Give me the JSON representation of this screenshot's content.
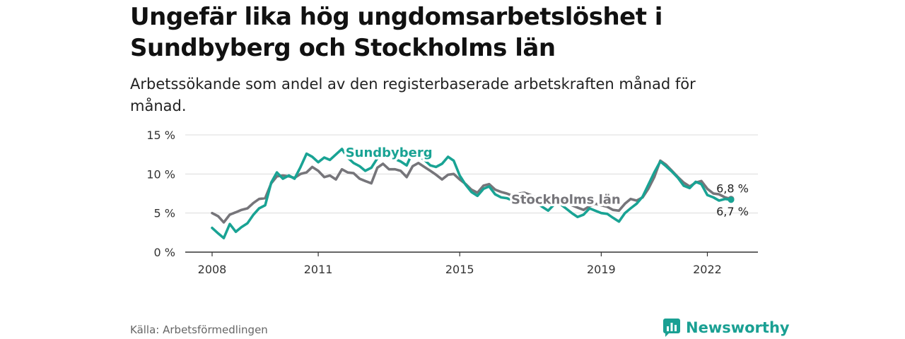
{
  "header": {
    "title": "Ungefär lika hög ungdomsarbetslöshet i Sundbyberg och Stockholms län",
    "subtitle": "Arbetssökande som andel av den registerbaserade arbetskraften månad för månad."
  },
  "footer": {
    "source": "Källa: Arbetsförmedlingen",
    "brand": "Newsworthy"
  },
  "colors": {
    "sundbyberg": "#19a394",
    "stockholm": "#76757a",
    "grid": "#dcdcdc",
    "axis": "#333333",
    "brand": "#1aa093"
  },
  "chart_data": {
    "type": "line",
    "title": "Ungefär lika hög ungdomsarbetslöshet i Sundbyberg och Stockholms län",
    "ylim": [
      0,
      15
    ],
    "yticks": [
      0,
      5,
      10,
      15
    ],
    "ytick_labels": [
      "0 %",
      "5 %",
      "10 %",
      "15 %"
    ],
    "xlim": [
      2008.0,
      2022.67
    ],
    "xticks": [
      2008,
      2011,
      2015,
      2019,
      2022
    ],
    "xtick_labels": [
      "2008",
      "2011",
      "2015",
      "2019",
      "2022"
    ],
    "series": [
      {
        "name": "Stockholms län",
        "color": "#76757a",
        "end_label": "6,8 %",
        "points": [
          [
            2008.0,
            5.0
          ],
          [
            2008.17,
            4.6
          ],
          [
            2008.33,
            3.8
          ],
          [
            2008.5,
            4.8
          ],
          [
            2008.67,
            5.1
          ],
          [
            2008.83,
            5.4
          ],
          [
            2009.0,
            5.6
          ],
          [
            2009.17,
            6.3
          ],
          [
            2009.33,
            6.8
          ],
          [
            2009.5,
            6.9
          ],
          [
            2009.67,
            8.8
          ],
          [
            2009.83,
            9.7
          ],
          [
            2010.0,
            9.8
          ],
          [
            2010.17,
            9.7
          ],
          [
            2010.33,
            9.5
          ],
          [
            2010.5,
            10.0
          ],
          [
            2010.67,
            10.2
          ],
          [
            2010.83,
            10.9
          ],
          [
            2011.0,
            10.4
          ],
          [
            2011.17,
            9.6
          ],
          [
            2011.33,
            9.8
          ],
          [
            2011.5,
            9.3
          ],
          [
            2011.67,
            10.6
          ],
          [
            2011.83,
            10.2
          ],
          [
            2012.0,
            10.1
          ],
          [
            2012.17,
            9.4
          ],
          [
            2012.33,
            9.1
          ],
          [
            2012.5,
            8.8
          ],
          [
            2012.67,
            10.8
          ],
          [
            2012.83,
            11.3
          ],
          [
            2013.0,
            10.6
          ],
          [
            2013.17,
            10.6
          ],
          [
            2013.33,
            10.4
          ],
          [
            2013.5,
            9.6
          ],
          [
            2013.67,
            11.0
          ],
          [
            2013.83,
            11.4
          ],
          [
            2014.0,
            10.9
          ],
          [
            2014.17,
            10.4
          ],
          [
            2014.33,
            9.9
          ],
          [
            2014.5,
            9.3
          ],
          [
            2014.67,
            9.9
          ],
          [
            2014.83,
            10.0
          ],
          [
            2015.0,
            9.3
          ],
          [
            2015.17,
            8.7
          ],
          [
            2015.33,
            8.0
          ],
          [
            2015.5,
            7.6
          ],
          [
            2015.67,
            8.5
          ],
          [
            2015.83,
            8.7
          ],
          [
            2016.0,
            8.0
          ],
          [
            2016.17,
            7.7
          ],
          [
            2016.33,
            7.5
          ],
          [
            2016.5,
            7.2
          ],
          [
            2016.67,
            7.5
          ],
          [
            2016.83,
            7.6
          ],
          [
            2017.0,
            7.3
          ],
          [
            2017.17,
            7.0
          ],
          [
            2017.33,
            6.7
          ],
          [
            2017.5,
            6.5
          ],
          [
            2017.67,
            6.9
          ],
          [
            2017.83,
            6.9
          ],
          [
            2018.0,
            6.3
          ],
          [
            2018.17,
            6.0
          ],
          [
            2018.33,
            5.7
          ],
          [
            2018.5,
            5.4
          ],
          [
            2018.67,
            5.9
          ],
          [
            2018.83,
            6.2
          ],
          [
            2019.0,
            6.0
          ],
          [
            2019.17,
            5.8
          ],
          [
            2019.33,
            5.4
          ],
          [
            2019.5,
            5.3
          ],
          [
            2019.67,
            6.2
          ],
          [
            2019.83,
            6.8
          ],
          [
            2020.0,
            6.6
          ],
          [
            2020.17,
            7.0
          ],
          [
            2020.33,
            8.1
          ],
          [
            2020.5,
            9.6
          ],
          [
            2020.67,
            11.7
          ],
          [
            2020.83,
            11.2
          ],
          [
            2021.0,
            10.4
          ],
          [
            2021.17,
            9.6
          ],
          [
            2021.33,
            8.9
          ],
          [
            2021.5,
            8.4
          ],
          [
            2021.67,
            8.9
          ],
          [
            2021.83,
            9.1
          ],
          [
            2022.0,
            8.1
          ],
          [
            2022.17,
            7.5
          ],
          [
            2022.33,
            7.4
          ],
          [
            2022.5,
            7.0
          ],
          [
            2022.67,
            6.8
          ]
        ]
      },
      {
        "name": "Sundbyberg",
        "color": "#19a394",
        "end_label": "6,7 %",
        "points": [
          [
            2008.0,
            3.1
          ],
          [
            2008.17,
            2.4
          ],
          [
            2008.33,
            1.8
          ],
          [
            2008.5,
            3.6
          ],
          [
            2008.67,
            2.6
          ],
          [
            2008.83,
            3.2
          ],
          [
            2009.0,
            3.7
          ],
          [
            2009.17,
            4.8
          ],
          [
            2009.33,
            5.6
          ],
          [
            2009.5,
            6.0
          ],
          [
            2009.67,
            8.9
          ],
          [
            2009.83,
            10.2
          ],
          [
            2010.0,
            9.4
          ],
          [
            2010.17,
            9.8
          ],
          [
            2010.33,
            9.4
          ],
          [
            2010.5,
            10.9
          ],
          [
            2010.67,
            12.6
          ],
          [
            2010.83,
            12.2
          ],
          [
            2011.0,
            11.5
          ],
          [
            2011.17,
            12.1
          ],
          [
            2011.33,
            11.8
          ],
          [
            2011.5,
            12.5
          ],
          [
            2011.67,
            13.2
          ],
          [
            2011.83,
            12.1
          ],
          [
            2012.0,
            11.4
          ],
          [
            2012.17,
            11.0
          ],
          [
            2012.33,
            10.4
          ],
          [
            2012.5,
            10.8
          ],
          [
            2012.67,
            12.0
          ],
          [
            2012.83,
            12.5
          ],
          [
            2013.0,
            12.1
          ],
          [
            2013.17,
            11.9
          ],
          [
            2013.33,
            11.6
          ],
          [
            2013.5,
            11.1
          ],
          [
            2013.67,
            12.8
          ],
          [
            2013.83,
            12.4
          ],
          [
            2014.0,
            11.8
          ],
          [
            2014.17,
            11.1
          ],
          [
            2014.33,
            10.9
          ],
          [
            2014.5,
            11.3
          ],
          [
            2014.67,
            12.2
          ],
          [
            2014.83,
            11.7
          ],
          [
            2015.0,
            9.8
          ],
          [
            2015.17,
            8.6
          ],
          [
            2015.33,
            7.7
          ],
          [
            2015.5,
            7.2
          ],
          [
            2015.67,
            8.1
          ],
          [
            2015.83,
            8.4
          ],
          [
            2016.0,
            7.4
          ],
          [
            2016.17,
            7.0
          ],
          [
            2016.33,
            6.9
          ],
          [
            2016.5,
            6.6
          ],
          [
            2016.67,
            7.4
          ],
          [
            2016.83,
            7.3
          ],
          [
            2017.0,
            6.9
          ],
          [
            2017.17,
            6.3
          ],
          [
            2017.33,
            5.8
          ],
          [
            2017.5,
            5.3
          ],
          [
            2017.67,
            6.1
          ],
          [
            2017.83,
            6.2
          ],
          [
            2018.0,
            5.6
          ],
          [
            2018.17,
            5.0
          ],
          [
            2018.33,
            4.5
          ],
          [
            2018.5,
            4.8
          ],
          [
            2018.67,
            5.6
          ],
          [
            2018.83,
            5.3
          ],
          [
            2019.0,
            5.0
          ],
          [
            2019.17,
            4.9
          ],
          [
            2019.33,
            4.4
          ],
          [
            2019.5,
            3.9
          ],
          [
            2019.67,
            5.0
          ],
          [
            2019.83,
            5.6
          ],
          [
            2020.0,
            6.2
          ],
          [
            2020.17,
            7.1
          ],
          [
            2020.33,
            8.6
          ],
          [
            2020.5,
            10.2
          ],
          [
            2020.67,
            11.6
          ],
          [
            2020.83,
            11.0
          ],
          [
            2021.0,
            10.3
          ],
          [
            2021.17,
            9.5
          ],
          [
            2021.33,
            8.5
          ],
          [
            2021.5,
            8.2
          ],
          [
            2021.67,
            9.0
          ],
          [
            2021.83,
            8.7
          ],
          [
            2022.0,
            7.3
          ],
          [
            2022.17,
            7.0
          ],
          [
            2022.33,
            6.6
          ],
          [
            2022.5,
            6.8
          ],
          [
            2022.67,
            6.7
          ]
        ]
      }
    ],
    "inline_labels": [
      "Sundbyberg",
      "Stockholms län"
    ]
  }
}
